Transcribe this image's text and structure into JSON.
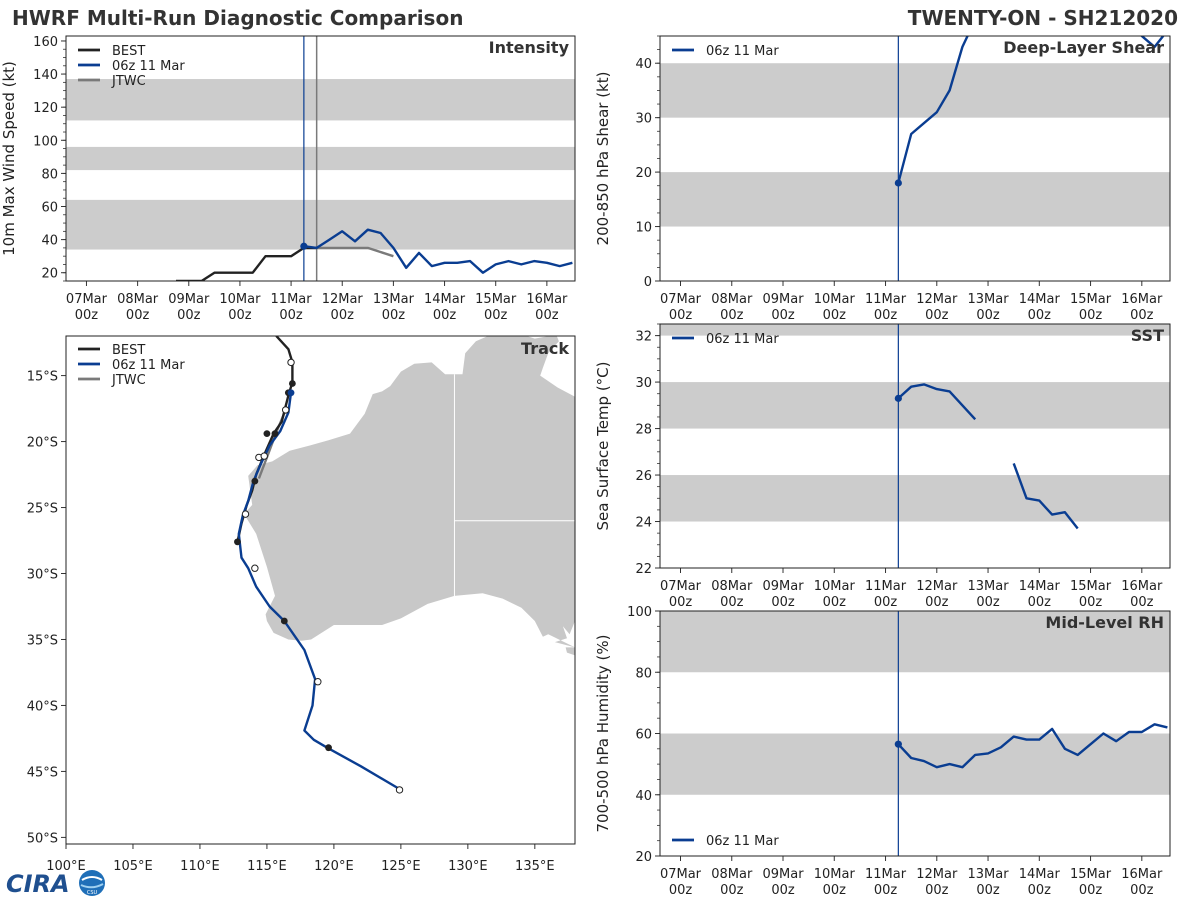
{
  "header": {
    "left_title": "HWRF Multi-Run Diagnostic Comparison",
    "right_title": "TWENTY-ON - SH212020"
  },
  "logo": {
    "text": "CIRA",
    "small": "CSU"
  },
  "colors": {
    "best": "#222222",
    "model": "#0a3d91",
    "jtwc": "#7a7a7a",
    "band": "#cccccc",
    "land": "#c8c8c8"
  },
  "time_axis": {
    "labels": [
      [
        "07Mar",
        "00z"
      ],
      [
        "08Mar",
        "00z"
      ],
      [
        "09Mar",
        "00z"
      ],
      [
        "10Mar",
        "00z"
      ],
      [
        "11Mar",
        "00z"
      ],
      [
        "12Mar",
        "00z"
      ],
      [
        "13Mar",
        "00z"
      ],
      [
        "14Mar",
        "00z"
      ],
      [
        "15Mar",
        "00z"
      ],
      [
        "16Mar",
        "00z"
      ]
    ],
    "range_days": [
      -0.4,
      9.55
    ],
    "init_marker_days": 4.25,
    "jtwc_marker_days": 4.5
  },
  "chart_data": [
    {
      "id": "intensity",
      "type": "line",
      "title": "Intensity",
      "ylabel": "10m Max Wind Speed (kt)",
      "ylim": [
        15,
        163
      ],
      "yticks": [
        20,
        40,
        60,
        80,
        100,
        120,
        140,
        160
      ],
      "bands": [
        [
          34,
          64
        ],
        [
          82,
          96
        ],
        [
          112,
          137
        ]
      ],
      "legend": [
        "BEST",
        "06z 11 Mar",
        "JTWC"
      ],
      "series": [
        {
          "name": "BEST",
          "key": "best",
          "x": [
            1.75,
            2.25,
            2.5,
            3.25,
            3.5,
            4.0,
            4.25,
            4.5
          ],
          "y": [
            15,
            15,
            20,
            20,
            30,
            30,
            35,
            35
          ]
        },
        {
          "name": "06z 11 Mar",
          "key": "model",
          "x": [
            4.25,
            4.5,
            4.75,
            5.0,
            5.25,
            5.5,
            5.75,
            6.0,
            6.25,
            6.5,
            6.75,
            7.0,
            7.25,
            7.5,
            7.75,
            8.0,
            8.25,
            8.5,
            8.75,
            9.0,
            9.25,
            9.5
          ],
          "y": [
            36,
            35,
            40,
            45,
            39,
            46,
            44,
            35,
            23,
            32,
            24,
            26,
            26,
            27,
            20,
            25,
            27,
            25,
            27,
            26,
            24,
            26
          ]
        },
        {
          "name": "JTWC",
          "key": "jtwc",
          "x": [
            4.25,
            4.5,
            5.0,
            5.5,
            6.0
          ],
          "y": [
            35,
            35,
            35,
            35,
            30
          ]
        }
      ]
    },
    {
      "id": "shear",
      "type": "line",
      "title": "Deep-Layer Shear",
      "ylabel": "200-850 hPa Shear (kt)",
      "ylim": [
        0,
        45
      ],
      "yticks": [
        0,
        10,
        20,
        30,
        40
      ],
      "bands": [
        [
          10,
          20
        ],
        [
          30,
          40
        ]
      ],
      "legend": [
        "06z 11 Mar"
      ],
      "series": [
        {
          "name": "06z 11 Mar",
          "key": "model",
          "x": [
            4.25,
            4.5,
            5.0,
            5.25,
            5.5,
            5.75,
            8.75,
            9.0,
            9.25,
            9.5
          ],
          "y": [
            18,
            27,
            31,
            35,
            43,
            48,
            48,
            45,
            43,
            46
          ]
        }
      ]
    },
    {
      "id": "sst",
      "type": "line",
      "title": "SST",
      "ylabel": "Sea Surface Temp (°C)",
      "ylim": [
        22,
        32.5
      ],
      "yticks": [
        22,
        24,
        26,
        28,
        30,
        32
      ],
      "bands": [
        [
          24,
          26
        ],
        [
          28,
          30
        ],
        [
          32,
          32.5
        ]
      ],
      "legend": [
        "06z 11 Mar"
      ],
      "series": [
        {
          "name": "06z 11 Mar",
          "key": "model",
          "x": [
            4.25,
            4.5,
            4.75,
            5.0,
            5.25,
            5.75
          ],
          "y": [
            29.3,
            29.8,
            29.9,
            29.7,
            29.6,
            28.4
          ]
        },
        {
          "name": "06z 11 Mar segment 2",
          "key": "model",
          "x": [
            6.5,
            6.75,
            7.0,
            7.25,
            7.5,
            7.75
          ],
          "y": [
            26.5,
            25.0,
            24.9,
            24.3,
            24.4,
            23.7
          ]
        }
      ]
    },
    {
      "id": "rh",
      "type": "line",
      "title": "Mid-Level RH",
      "ylabel": "700-500 hPa Humidity (%)",
      "ylim": [
        20,
        100
      ],
      "yticks": [
        20,
        40,
        60,
        80,
        100
      ],
      "bands": [
        [
          40,
          60
        ],
        [
          80,
          100
        ]
      ],
      "legend": [
        "06z 11 Mar"
      ],
      "legend_pos": "bottom-left",
      "series": [
        {
          "name": "06z 11 Mar",
          "key": "model",
          "x": [
            4.25,
            4.5,
            4.75,
            5.0,
            5.25,
            5.5,
            5.75,
            6.0,
            6.25,
            6.5,
            6.75,
            7.0,
            7.25,
            7.5,
            7.75,
            8.0,
            8.25,
            8.5,
            8.75,
            9.0,
            9.25,
            9.5
          ],
          "y": [
            56.5,
            52,
            51,
            49,
            50,
            49,
            53,
            53.5,
            55.5,
            59,
            58,
            58,
            61.5,
            55,
            53,
            56.5,
            60,
            57.5,
            60.5,
            60.5,
            63,
            62
          ]
        }
      ]
    },
    {
      "id": "track",
      "type": "scatter",
      "title": "Track",
      "lon_range": [
        100,
        138
      ],
      "lat_range": [
        -50.5,
        -12
      ],
      "xticks": [
        100,
        105,
        110,
        115,
        120,
        125,
        130,
        135
      ],
      "xtick_labels": [
        "100°E",
        "105°E",
        "110°E",
        "115°E",
        "120°E",
        "125°E",
        "130°E",
        "135°E"
      ],
      "yticks": [
        -15,
        -20,
        -25,
        -30,
        -35,
        -40,
        -45,
        -50
      ],
      "ytick_labels": [
        "15°S",
        "20°S",
        "25°S",
        "30°S",
        "35°S",
        "40°S",
        "45°S",
        "50°S"
      ],
      "legend": [
        "BEST",
        "06z 11 Mar",
        "JTWC"
      ],
      "series": [
        {
          "name": "BEST",
          "key": "best",
          "lon": [
            115.7,
            116.6,
            116.9,
            116.9,
            116.6,
            116.1,
            115.5,
            114.8,
            114.2,
            113.9,
            113.5,
            113.1,
            112.8
          ],
          "lat": [
            -12.0,
            -13.0,
            -14.0,
            -15.5,
            -16.5,
            -18.5,
            -19.4,
            -21.0,
            -22.5,
            -23.7,
            -24.8,
            -26.2,
            -27.6
          ]
        },
        {
          "name": "06z 11 Mar",
          "key": "model",
          "lon": [
            116.8,
            116.6,
            116.0,
            115.2,
            114.5,
            114.0,
            113.6,
            113.2,
            112.9,
            113.1,
            113.6,
            114.2,
            115.2,
            116.3,
            117.8,
            118.6,
            118.4,
            117.8,
            118.5,
            119.5,
            122.0,
            125.0
          ],
          "lat": [
            -16.3,
            -17.8,
            -19.2,
            -20.3,
            -21.8,
            -23.0,
            -24.5,
            -25.6,
            -27.0,
            -28.8,
            -29.6,
            -31.0,
            -32.5,
            -33.6,
            -35.8,
            -38.0,
            -40.0,
            -41.9,
            -42.6,
            -43.2,
            -44.6,
            -46.4
          ]
        },
        {
          "name": "JTWC",
          "key": "jtwc",
          "lon": [
            116.4,
            115.7,
            115.0,
            114.4
          ],
          "lat": [
            -17.6,
            -19.3,
            -21.2,
            -22.8
          ]
        }
      ],
      "dots": {
        "filled": [
          [
            116.9,
            -15.6
          ],
          [
            116.6,
            -16.3
          ],
          [
            115.0,
            -19.4
          ],
          [
            115.6,
            -19.4
          ],
          [
            114.1,
            -23.0
          ],
          [
            112.8,
            -27.6
          ],
          [
            116.3,
            -33.6
          ],
          [
            119.6,
            -43.2
          ]
        ],
        "open": [
          [
            116.8,
            -14.0
          ],
          [
            116.4,
            -17.6
          ],
          [
            114.4,
            -21.2
          ],
          [
            114.8,
            -21.1
          ],
          [
            113.4,
            -25.5
          ],
          [
            114.1,
            -29.6
          ],
          [
            118.8,
            -38.2
          ],
          [
            124.9,
            -46.4
          ]
        ],
        "model_init": [
          116.8,
          -16.3
        ]
      },
      "land": [
        [
          [
            115.0,
            -33.6
          ],
          [
            114.9,
            -33.1
          ],
          [
            115.6,
            -31.7
          ],
          [
            115.0,
            -29.5
          ],
          [
            114.2,
            -27.0
          ],
          [
            113.3,
            -25.5
          ],
          [
            113.9,
            -24.8
          ],
          [
            113.6,
            -22.6
          ],
          [
            114.3,
            -21.8
          ],
          [
            115.4,
            -21.5
          ],
          [
            116.7,
            -20.7
          ],
          [
            118.2,
            -20.3
          ],
          [
            119.6,
            -19.9
          ],
          [
            121.2,
            -19.4
          ],
          [
            122.3,
            -17.9
          ],
          [
            122.9,
            -16.4
          ],
          [
            123.6,
            -16.2
          ],
          [
            124.2,
            -15.8
          ],
          [
            125.0,
            -14.7
          ],
          [
            126.0,
            -14.1
          ],
          [
            127.3,
            -14.0
          ],
          [
            128.3,
            -14.9
          ],
          [
            129.6,
            -14.9
          ],
          [
            129.8,
            -13.3
          ],
          [
            130.6,
            -12.4
          ],
          [
            131.5,
            -12.0
          ],
          [
            132.6,
            -12.0
          ],
          [
            132.7,
            -11.3
          ],
          [
            133.8,
            -11.8
          ],
          [
            135.0,
            -12.2
          ],
          [
            136.6,
            -11.9
          ],
          [
            136.8,
            -12.4
          ],
          [
            136.0,
            -13.3
          ],
          [
            135.6,
            -14.4
          ],
          [
            135.4,
            -15.0
          ],
          [
            136.7,
            -15.9
          ],
          [
            138.0,
            -16.6
          ],
          [
            138.0,
            -33.6
          ],
          [
            137.6,
            -34.6
          ],
          [
            137.1,
            -34.0
          ],
          [
            137.4,
            -34.9
          ],
          [
            136.5,
            -35.2
          ],
          [
            138.0,
            -35.6
          ],
          [
            138.0,
            -35.6
          ],
          [
            136.0,
            -34.6
          ],
          [
            135.6,
            -34.8
          ],
          [
            135.0,
            -33.6
          ],
          [
            134.0,
            -32.6
          ],
          [
            132.6,
            -31.9
          ],
          [
            131.1,
            -31.5
          ],
          [
            129.0,
            -31.7
          ],
          [
            127.0,
            -32.3
          ],
          [
            125.0,
            -33.4
          ],
          [
            123.6,
            -33.9
          ],
          [
            122.0,
            -33.9
          ],
          [
            120.0,
            -33.9
          ],
          [
            118.3,
            -35.0
          ],
          [
            117.6,
            -35.1
          ],
          [
            116.6,
            -35.0
          ],
          [
            115.5,
            -34.5
          ],
          [
            115.0,
            -33.6
          ]
        ]
      ],
      "borders": [
        [
          [
            129.0,
            -14.9
          ],
          [
            129.0,
            -31.7
          ]
        ],
        [
          [
            129.0,
            -26.0
          ],
          [
            138.0,
            -26.0
          ]
        ]
      ]
    }
  ]
}
